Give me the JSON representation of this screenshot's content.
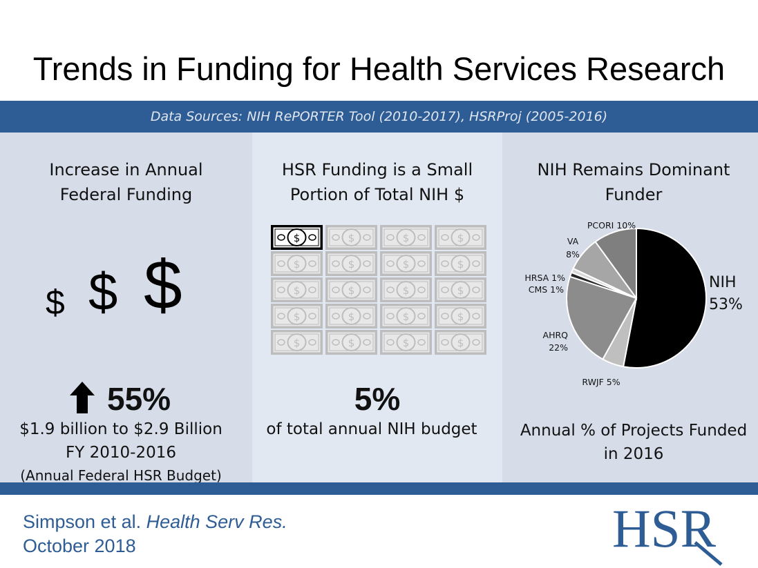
{
  "title": "Trends in Funding for Health Services Research",
  "sources": "Data Sources: NIH RePORTER Tool (2010-2017), HSRProj (2005-2016)",
  "colors": {
    "bar": "#2e5c94",
    "panel_dark": "#d6dde9",
    "panel_light": "#e2e8f1"
  },
  "left": {
    "heading_line1": "Increase in Annual",
    "heading_line2": "Federal Funding",
    "dollar_icons": [
      "$",
      "$",
      "$"
    ],
    "arrow_icon": "up-arrow-icon",
    "stat": "55%",
    "line1": "$1.9 billion to $2.9 Billion",
    "line2": "FY 2010-2016",
    "note": "(Annual Federal HSR Budget)"
  },
  "middle": {
    "heading_line1": "HSR Funding is a Small",
    "heading_line2": "Portion of Total NIH $",
    "bill_icon": "dollar-bill-icon",
    "bills_total": 20,
    "bills_highlighted": 1,
    "bill_symbol": "$",
    "stat": "5%",
    "caption": "of total annual NIH budget"
  },
  "right": {
    "heading_line1": "NIH Remains Dominant",
    "heading_line2": "Funder",
    "caption_line1": "Annual % of Projects Funded",
    "caption_line2": "in 2016"
  },
  "chart_data": {
    "type": "pie",
    "slices": [
      {
        "name": "NIH",
        "value": 53,
        "color": "#000000"
      },
      {
        "name": "RWJF",
        "value": 5,
        "color": "#bfbfbf"
      },
      {
        "name": "AHRQ",
        "value": 22,
        "color": "#8c8c8c"
      },
      {
        "name": "CMS",
        "value": 1,
        "color": "#262626"
      },
      {
        "name": "HRSA",
        "value": 1,
        "color": "#d9d9d9"
      },
      {
        "name": "VA",
        "value": 8,
        "color": "#a6a6a6"
      },
      {
        "name": "PCORI",
        "value": 10,
        "color": "#7f7f7f"
      }
    ],
    "labels": {
      "NIH": [
        "NIH",
        "53%"
      ],
      "RWJF": [
        "RWJF 5%"
      ],
      "AHRQ": [
        "AHRQ",
        "22%"
      ],
      "HRSA": [
        "HRSA 1%"
      ],
      "CMS": [
        "CMS 1%"
      ],
      "VA": [
        "VA",
        "8%"
      ],
      "PCORI": [
        "PCORI 10%"
      ]
    }
  },
  "citation": {
    "authors": "Simpson et al.",
    "journal": "Health Serv Res.",
    "date": "October 2018"
  },
  "logo": {
    "text": "HSR",
    "color": "#2e5c94"
  }
}
